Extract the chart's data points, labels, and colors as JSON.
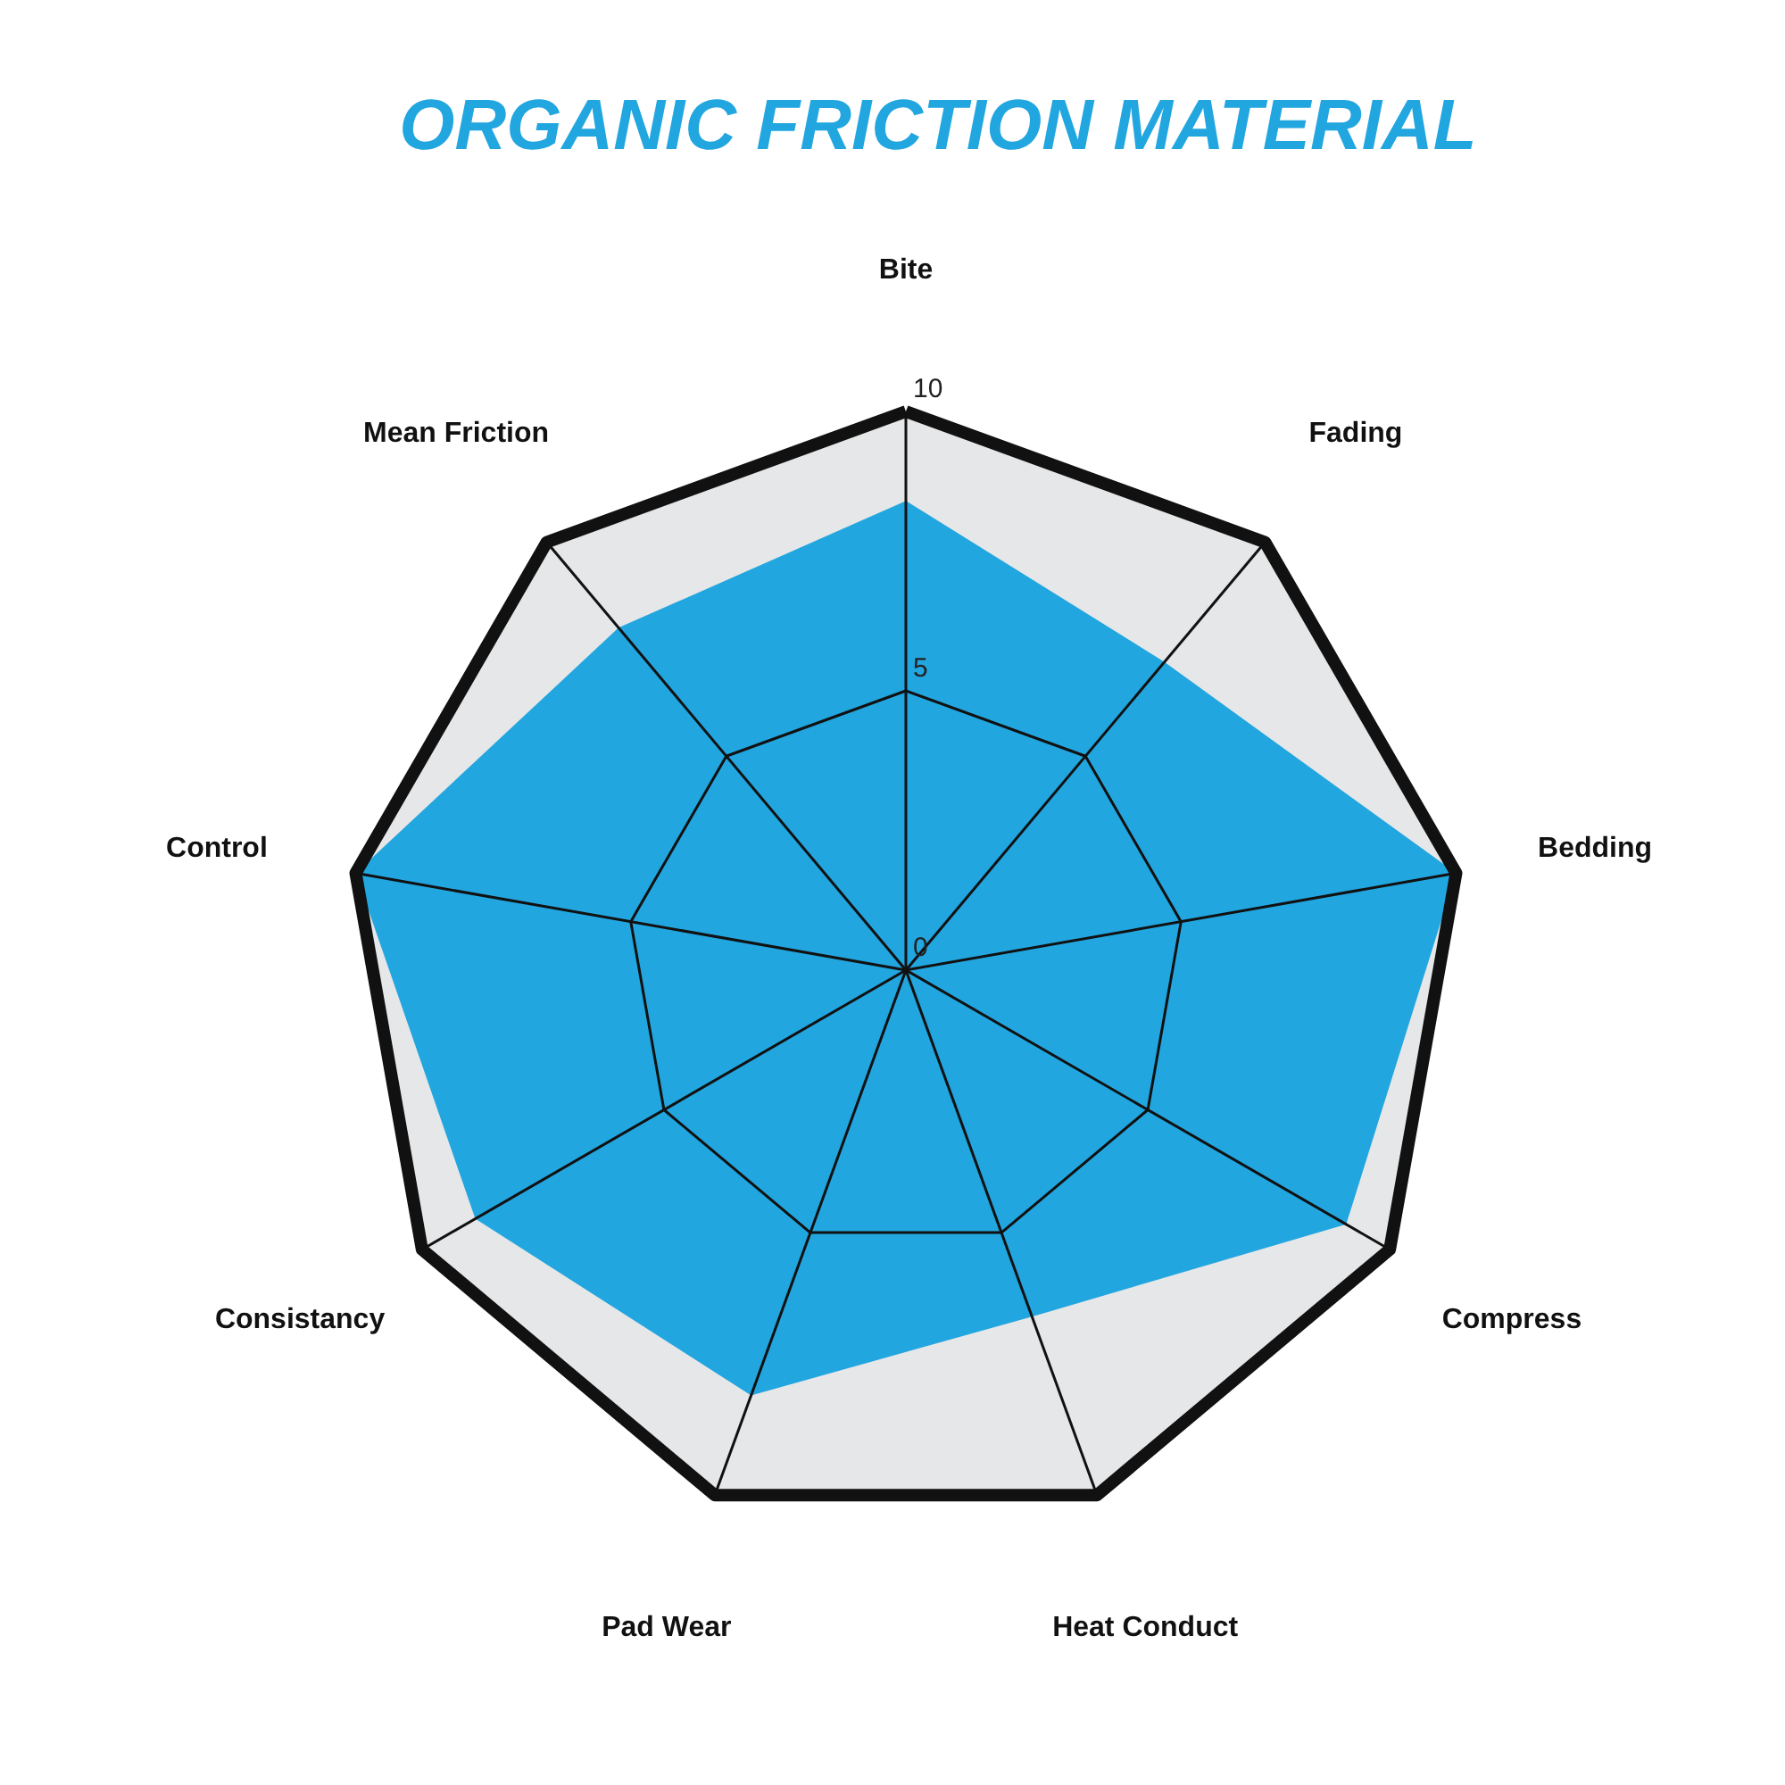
{
  "chart_data": {
    "type": "radar",
    "title": "ORGANIC FRICTION MATERIAL",
    "categories": [
      "Bite",
      "Fading",
      "Bedding",
      "Compress",
      "Heat Conduct",
      "Pad Wear",
      "Consistancy",
      "Control",
      "Mean Friction"
    ],
    "series": [
      {
        "color": "#22a6df",
        "values": [
          8.4,
          7.2,
          10,
          9.1,
          6.6,
          8.1,
          8.9,
          10,
          8.0
        ]
      }
    ],
    "ylim": [
      0,
      10
    ],
    "yticks": [
      0,
      5,
      10
    ],
    "grid": true
  }
}
